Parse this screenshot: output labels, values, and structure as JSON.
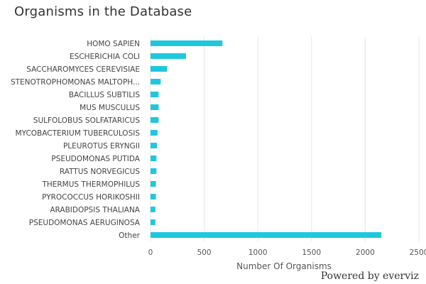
{
  "chart_data": {
    "type": "bar",
    "orientation": "horizontal",
    "title": "Organisms in the Database",
    "xlabel": "Number Of Organisms",
    "ylabel": "",
    "categories": [
      "HOMO SAPIEN",
      "ESCHERICHIA COLI",
      "SACCHAROMYCES CEREVISIAE",
      "STENOTROPHOMONAS MALTOPH...",
      "BACILLUS SUBTILIS",
      "MUS MUSCULUS",
      "SULFOLOBUS SOLFATARICUS",
      "MYCOBACTERIUM TUBERCULOSIS",
      "PLEUROTUS ERYNGII",
      "PSEUDOMONAS PUTIDA",
      "RATTUS NORVEGICUS",
      "THERMUS THERMOPHILUS",
      "PYROCOCCUS HORIKOSHII",
      "ARABIDOPSIS THALIANA",
      "PSEUDOMONAS AERUGINOSA",
      "Other"
    ],
    "values": [
      670,
      330,
      155,
      95,
      75,
      75,
      75,
      65,
      60,
      55,
      55,
      50,
      50,
      45,
      45,
      2150
    ],
    "xlim": [
      0,
      2500
    ],
    "xticks": [
      "0",
      "500",
      "1000",
      "1500",
      "2000",
      "2500"
    ],
    "grid": "vertical",
    "legend": "none",
    "bar_color": "#1ec8dc"
  },
  "credits": "Powered by everviz"
}
